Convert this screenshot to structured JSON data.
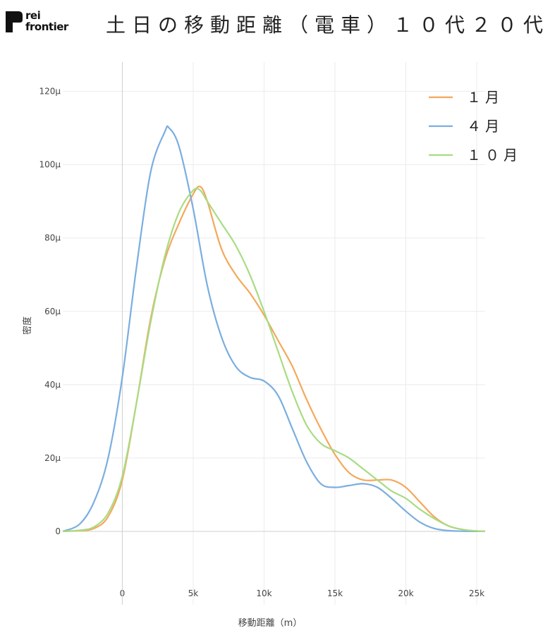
{
  "logo": {
    "line1": "rei",
    "line2": "frontier"
  },
  "chart_data": {
    "type": "line",
    "title": "土日の移動距離（電車）１０代２０代",
    "xlabel": "移動距離（m）",
    "ylabel": "密度",
    "xlim": [
      -4200,
      25600
    ],
    "ylim": [
      -20,
      128
    ],
    "x_ticks": [
      0,
      5000,
      10000,
      15000,
      20000,
      25000
    ],
    "x_tick_labels": [
      "0",
      "5k",
      "10k",
      "15k",
      "20k",
      "25k"
    ],
    "y_ticks": [
      0,
      20,
      40,
      60,
      80,
      100,
      120
    ],
    "y_tick_labels": [
      "0",
      "20μ",
      "40μ",
      "60μ",
      "80μ",
      "100μ",
      "120μ"
    ],
    "y_unit": "μ (×1e-6)",
    "grid": true,
    "legend_position": "top-right",
    "series": [
      {
        "name": "１月",
        "color": "#f4a85a",
        "x": [
          -4200,
          -3000,
          -2000,
          -1000,
          0,
          1000,
          2000,
          3000,
          4000,
          5000,
          5500,
          6000,
          7000,
          8000,
          9000,
          10000,
          11000,
          12000,
          13000,
          14000,
          15000,
          16000,
          17000,
          18000,
          19000,
          20000,
          21000,
          22000,
          23000,
          24000,
          25000,
          25600
        ],
        "values": [
          0,
          0.2,
          0.8,
          4,
          14,
          35,
          58,
          74,
          84,
          92,
          94,
          90,
          77,
          70,
          65,
          59,
          52,
          45,
          36,
          28,
          21,
          16,
          14,
          14,
          14,
          12,
          8,
          4,
          1.5,
          0.5,
          0.1,
          0
        ]
      },
      {
        "name": "４月",
        "color": "#7aaee0",
        "x": [
          -4200,
          -3000,
          -2000,
          -1000,
          0,
          1000,
          2000,
          3000,
          3300,
          4000,
          5000,
          6000,
          7000,
          8000,
          9000,
          10000,
          11000,
          12000,
          13000,
          14000,
          15000,
          16000,
          17000,
          18000,
          19000,
          20000,
          21000,
          22000,
          23000,
          24000,
          25000,
          25600
        ],
        "values": [
          0,
          2,
          8,
          20,
          42,
          72,
          98,
          109,
          110,
          105,
          88,
          67,
          53,
          45,
          42,
          41,
          37,
          28,
          19,
          13,
          12,
          12.5,
          13,
          12,
          9,
          5.5,
          2.5,
          0.8,
          0.2,
          0.05,
          0,
          0
        ]
      },
      {
        "name": "１０月",
        "color": "#a8dc84",
        "x": [
          -4200,
          -3000,
          -2000,
          -1000,
          0,
          1000,
          2000,
          3000,
          4000,
          5000,
          5500,
          6000,
          7000,
          8000,
          9000,
          10000,
          11000,
          12000,
          13000,
          14000,
          15000,
          16000,
          17000,
          18000,
          19000,
          20000,
          21000,
          22000,
          23000,
          24000,
          25000,
          25600
        ],
        "values": [
          0,
          0.3,
          1.2,
          5,
          15,
          35,
          57,
          75,
          87,
          93,
          93,
          90,
          84,
          78,
          70,
          60,
          49,
          38,
          29,
          24,
          22,
          20,
          17,
          14,
          11,
          9,
          6,
          3.5,
          1.5,
          0.5,
          0.1,
          0
        ]
      }
    ]
  }
}
